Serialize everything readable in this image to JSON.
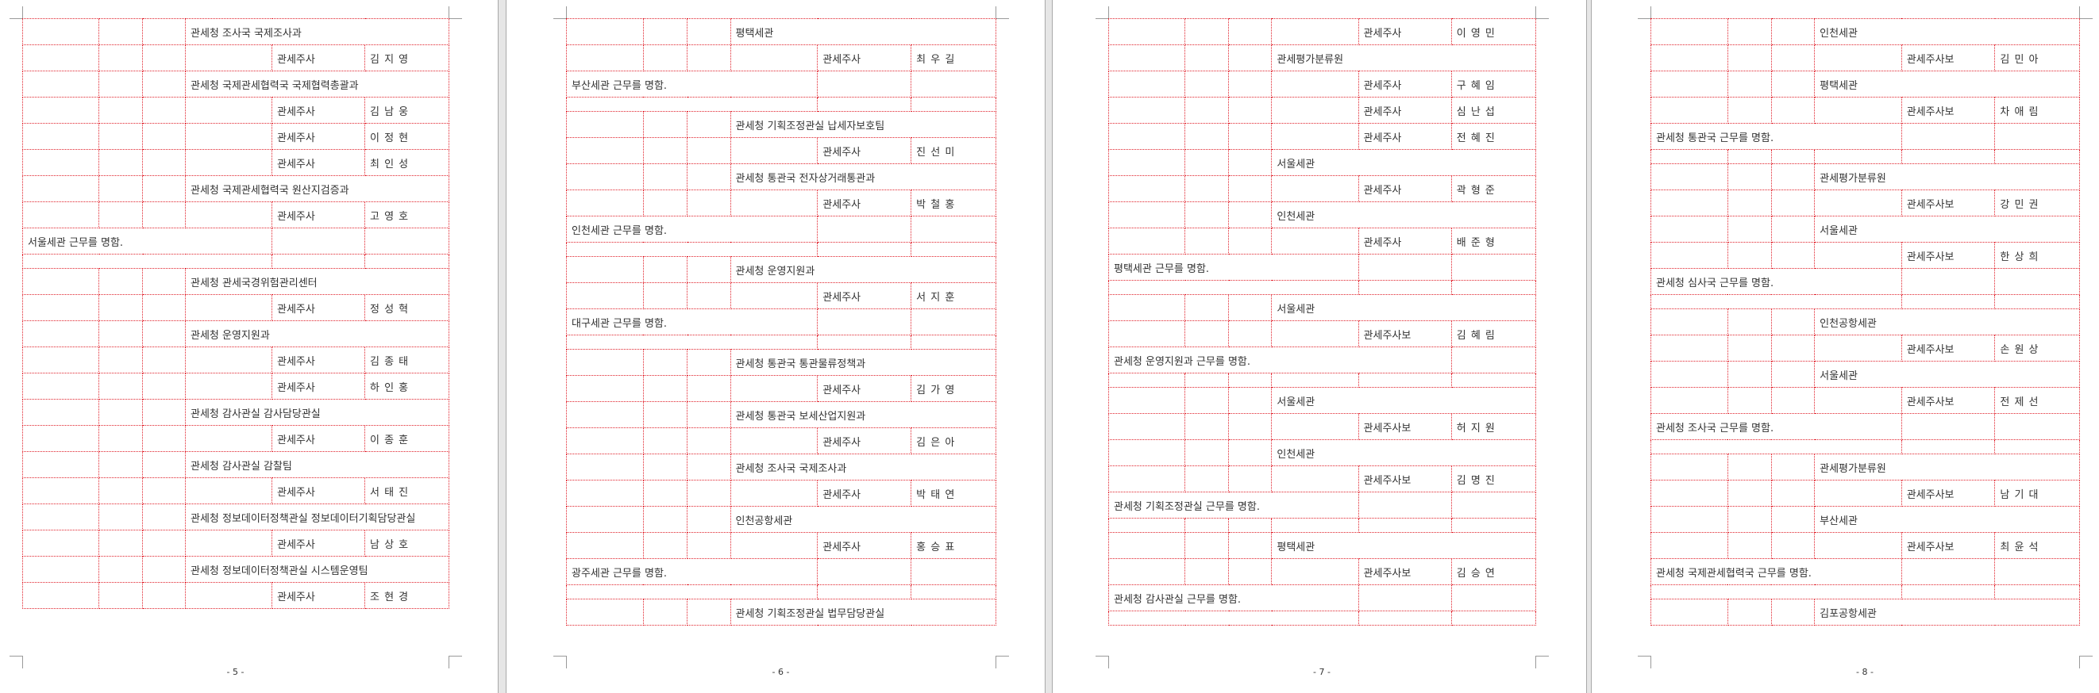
{
  "pages": [
    {
      "page_number": "- 5 -",
      "rows": [
        {
          "type": "org",
          "text": "관세청 조사국 국제조사과"
        },
        {
          "type": "person",
          "rank": "관세주사",
          "name": "김 지 영"
        },
        {
          "type": "org",
          "text": "관세청 국제관세협력국 국제협력총괄과"
        },
        {
          "type": "person",
          "rank": "관세주사",
          "name": "김 남 웅"
        },
        {
          "type": "person",
          "rank": "관세주사",
          "name": "이 정 현"
        },
        {
          "type": "person",
          "rank": "관세주사",
          "name": "최 인 성"
        },
        {
          "type": "org",
          "text": "관세청 국제관세협력국 원산지검증과"
        },
        {
          "type": "person",
          "rank": "관세주사",
          "name": "고 영 호"
        },
        {
          "type": "assign",
          "text": "서울세관 근무를 명함."
        },
        {
          "type": "half"
        },
        {
          "type": "org",
          "text": "관세청 관세국경위험관리센터"
        },
        {
          "type": "person",
          "rank": "관세주사",
          "name": "정 성 혁"
        },
        {
          "type": "org",
          "text": "관세청 운영지원과"
        },
        {
          "type": "person",
          "rank": "관세주사",
          "name": "김 종 태"
        },
        {
          "type": "person",
          "rank": "관세주사",
          "name": "하 인 홍"
        },
        {
          "type": "org",
          "text": "관세청 감사관실 감사담당관실"
        },
        {
          "type": "person",
          "rank": "관세주사",
          "name": "이 종 훈"
        },
        {
          "type": "org",
          "text": "관세청 감사관실 감찰팀"
        },
        {
          "type": "person",
          "rank": "관세주사",
          "name": "서 태 진"
        },
        {
          "type": "org",
          "text": "관세청 정보데이터정책관실 정보데이터기획담당관실"
        },
        {
          "type": "person",
          "rank": "관세주사",
          "name": "남 상 호"
        },
        {
          "type": "org",
          "text": "관세청 정보데이터정책관실 시스템운영팀"
        },
        {
          "type": "person",
          "rank": "관세주사",
          "name": "조 현 경"
        }
      ]
    },
    {
      "page_number": "- 6 -",
      "rows": [
        {
          "type": "org",
          "text": "평택세관"
        },
        {
          "type": "person",
          "rank": "관세주사",
          "name": "최 우 길"
        },
        {
          "type": "assign",
          "text": "부산세관 근무를 명함."
        },
        {
          "type": "half"
        },
        {
          "type": "org",
          "text": "관세청 기획조정관실 납세자보호팀"
        },
        {
          "type": "person",
          "rank": "관세주사",
          "name": "진 선 미"
        },
        {
          "type": "org",
          "text": "관세청 통관국 전자상거래통관과"
        },
        {
          "type": "person",
          "rank": "관세주사",
          "name": "박 철 홍"
        },
        {
          "type": "assign",
          "text": "인천세관 근무를 명함."
        },
        {
          "type": "half"
        },
        {
          "type": "org",
          "text": "관세청 운영지원과"
        },
        {
          "type": "person",
          "rank": "관세주사",
          "name": "서 지 훈"
        },
        {
          "type": "assign",
          "text": "대구세관 근무를 명함."
        },
        {
          "type": "half"
        },
        {
          "type": "org",
          "text": "관세청 통관국 통관물류정책과"
        },
        {
          "type": "person",
          "rank": "관세주사",
          "name": "김 가 영"
        },
        {
          "type": "org",
          "text": "관세청 통관국 보세산업지원과"
        },
        {
          "type": "person",
          "rank": "관세주사",
          "name": "김 은 아"
        },
        {
          "type": "org",
          "text": "관세청 조사국 국제조사과"
        },
        {
          "type": "person",
          "rank": "관세주사",
          "name": "박 태 연"
        },
        {
          "type": "org",
          "text": "인천공항세관"
        },
        {
          "type": "person",
          "rank": "관세주사",
          "name": "홍 승 표"
        },
        {
          "type": "assign",
          "text": "광주세관 근무를 명함."
        },
        {
          "type": "half"
        },
        {
          "type": "org",
          "text": "관세청 기획조정관실 법무담당관실"
        }
      ]
    },
    {
      "page_number": "- 7 -",
      "rows": [
        {
          "type": "person",
          "rank": "관세주사",
          "name": "이 영 민"
        },
        {
          "type": "org",
          "text": "관세평가분류원"
        },
        {
          "type": "person",
          "rank": "관세주사",
          "name": "구 혜 임"
        },
        {
          "type": "person",
          "rank": "관세주사",
          "name": "심 난 섭"
        },
        {
          "type": "person",
          "rank": "관세주사",
          "name": "전 혜 진"
        },
        {
          "type": "org",
          "text": "서울세관"
        },
        {
          "type": "person",
          "rank": "관세주사",
          "name": "곽 형 준"
        },
        {
          "type": "org",
          "text": "인천세관"
        },
        {
          "type": "person",
          "rank": "관세주사",
          "name": "배 준 형"
        },
        {
          "type": "assign",
          "text": "평택세관 근무를 명함."
        },
        {
          "type": "half"
        },
        {
          "type": "org",
          "text": "서울세관"
        },
        {
          "type": "person",
          "rank": "관세주사보",
          "name": "김 혜 림"
        },
        {
          "type": "assign-wide",
          "text": "관세청 운영지원과 근무를 명함."
        },
        {
          "type": "half-grid"
        },
        {
          "type": "org",
          "text": "서울세관"
        },
        {
          "type": "person",
          "rank": "관세주사보",
          "name": "허 지 원"
        },
        {
          "type": "org",
          "text": "인천세관"
        },
        {
          "type": "person",
          "rank": "관세주사보",
          "name": "김 명 진"
        },
        {
          "type": "assign",
          "text": "관세청 기획조정관실 근무를 명함."
        },
        {
          "type": "half-grid"
        },
        {
          "type": "org",
          "text": "평택세관"
        },
        {
          "type": "person",
          "rank": "관세주사보",
          "name": "김 승 연"
        },
        {
          "type": "assign",
          "text": "관세청 감사관실 근무를 명함."
        },
        {
          "type": "half"
        }
      ]
    },
    {
      "page_number": "- 8 -",
      "rows": [
        {
          "type": "org",
          "text": "인천세관"
        },
        {
          "type": "person",
          "rank": "관세주사보",
          "name": "김 민 아"
        },
        {
          "type": "org",
          "text": "평택세관"
        },
        {
          "type": "person",
          "rank": "관세주사보",
          "name": "차 애 림"
        },
        {
          "type": "assign",
          "text": "관세청 통관국 근무를 명함."
        },
        {
          "type": "half-grid"
        },
        {
          "type": "org",
          "text": "관세평가분류원"
        },
        {
          "type": "person",
          "rank": "관세주사보",
          "name": "강 민 권"
        },
        {
          "type": "org",
          "text": "서울세관"
        },
        {
          "type": "person",
          "rank": "관세주사보",
          "name": "한 상 희"
        },
        {
          "type": "assign",
          "text": "관세청 심사국 근무를 명함."
        },
        {
          "type": "half"
        },
        {
          "type": "org",
          "text": "인천공항세관"
        },
        {
          "type": "person",
          "rank": "관세주사보",
          "name": "손 원 상"
        },
        {
          "type": "org",
          "text": "서울세관"
        },
        {
          "type": "person",
          "rank": "관세주사보",
          "name": "전 제 선"
        },
        {
          "type": "assign",
          "text": "관세청 조사국 근무를 명함."
        },
        {
          "type": "half"
        },
        {
          "type": "org",
          "text": "관세평가분류원"
        },
        {
          "type": "person",
          "rank": "관세주사보",
          "name": "남 기 대"
        },
        {
          "type": "org",
          "text": "부산세관"
        },
        {
          "type": "person",
          "rank": "관세주사보",
          "name": "최 윤 석"
        },
        {
          "type": "assign",
          "text": "관세청 국제관세협력국 근무를 명함."
        },
        {
          "type": "half"
        },
        {
          "type": "org",
          "text": "김포공항세관"
        }
      ]
    }
  ],
  "colors": {
    "grid": "#e0202a",
    "text": "#333333",
    "gutter": "#e6e6e6"
  }
}
